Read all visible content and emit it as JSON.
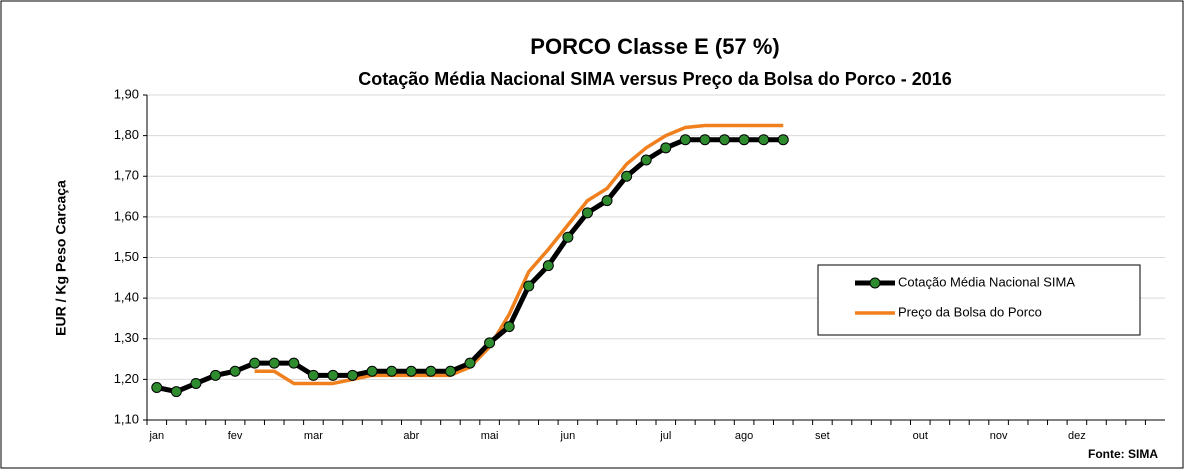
{
  "chart_data": {
    "type": "line",
    "title": "PORCO Classe E (57 %)",
    "subtitle": "Cotação Média Nacional SIMA versus Preço da Bolsa do Porco - 2016",
    "y_label": "EUR / Kg Peso Carcaça",
    "source": "Fonte: SIMA",
    "categories": [
      "jan",
      null,
      null,
      null,
      "fev",
      null,
      null,
      null,
      "mar",
      null,
      null,
      null,
      null,
      "abr",
      null,
      null,
      null,
      "mai",
      null,
      null,
      null,
      "jun",
      null,
      null,
      null,
      null,
      "jul",
      null,
      null,
      null,
      "ago",
      null,
      null,
      null,
      "set",
      null,
      null,
      null,
      null,
      "out",
      null,
      null,
      null,
      "nov",
      null,
      null,
      null,
      "dez",
      null,
      null,
      null,
      null
    ],
    "series": [
      {
        "name": "Cotação Média Nacional SIMA",
        "color": "#000000",
        "marker_color": "#2e8b2e",
        "values": [
          1.18,
          1.17,
          1.19,
          1.21,
          1.22,
          1.24,
          1.24,
          1.24,
          1.21,
          1.21,
          1.21,
          1.22,
          1.22,
          1.22,
          1.22,
          1.22,
          1.24,
          1.29,
          1.33,
          1.43,
          1.48,
          1.55,
          1.61,
          1.64,
          1.7,
          1.74,
          1.77,
          1.79,
          1.79,
          1.79,
          1.79,
          1.79,
          1.79,
          null,
          null,
          null,
          null,
          null,
          null,
          null,
          null,
          null,
          null,
          null,
          null,
          null,
          null,
          null,
          null,
          null,
          null,
          null
        ]
      },
      {
        "name": "Preço da Bolsa do Porco",
        "color": "#f07f1e",
        "values": [
          null,
          null,
          null,
          null,
          null,
          1.22,
          1.22,
          1.19,
          1.19,
          1.19,
          1.2,
          1.21,
          1.21,
          1.21,
          1.21,
          1.21,
          1.23,
          1.28,
          1.36,
          1.465,
          1.52,
          1.58,
          1.64,
          1.67,
          1.73,
          1.77,
          1.8,
          1.82,
          1.825,
          1.825,
          1.825,
          1.825,
          1.825,
          null,
          null,
          null,
          null,
          null,
          null,
          null,
          null,
          null,
          null,
          null,
          null,
          null,
          null,
          null,
          null,
          null,
          null,
          null
        ]
      }
    ],
    "ylim": [
      1.1,
      1.9
    ],
    "yticks": [
      {
        "value": 1.1,
        "label": "1,10"
      },
      {
        "value": 1.2,
        "label": "1,20"
      },
      {
        "value": 1.3,
        "label": "1,30"
      },
      {
        "value": 1.4,
        "label": "1,40"
      },
      {
        "value": 1.5,
        "label": "1,50"
      },
      {
        "value": 1.6,
        "label": "1,60"
      },
      {
        "value": 1.7,
        "label": "1,70"
      },
      {
        "value": 1.8,
        "label": "1,80"
      },
      {
        "value": 1.9,
        "label": "1,90"
      }
    ],
    "grid": true
  }
}
